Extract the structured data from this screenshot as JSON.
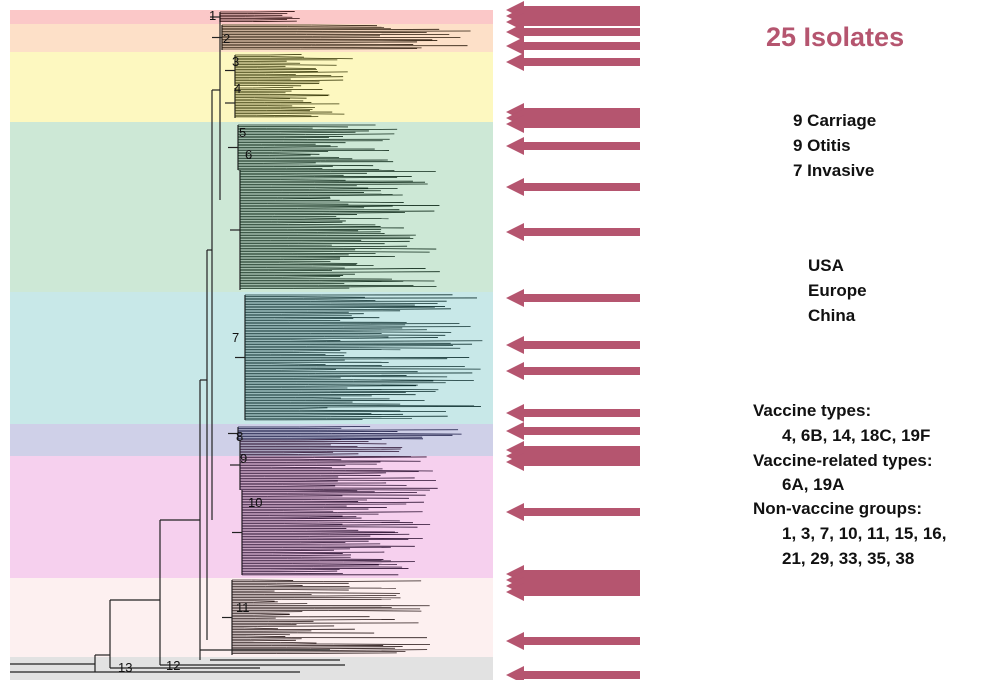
{
  "title": "25 Isolates",
  "sources": [
    "9 Carriage",
    "9 Otitis",
    "7 Invasive"
  ],
  "regions": [
    "USA",
    "Europe",
    "China"
  ],
  "types": {
    "vaccine_label": "Vaccine types:",
    "vaccine_values": "4, 6B, 14, 18C, 19F",
    "related_label": "Vaccine-related types:",
    "related_values": "6A, 19A",
    "nonvaccine_label": "Non-vaccine groups:",
    "nonvaccine_values_1": "1, 3, 7, 10, 11, 15, 16,",
    "nonvaccine_values_2": "21, 29, 33, 35, 38"
  },
  "clade_labels": [
    "1",
    "2",
    "3",
    "4",
    "5",
    "6",
    "7",
    "8",
    "9",
    "10",
    "11",
    "12",
    "13"
  ],
  "colors": {
    "arrow": "#b5556f",
    "title": "#b5556f",
    "band_1": "#fbc8c8",
    "band_2": "#fde0c8",
    "band_3_4": "#fdf8c0",
    "band_5_6": "#cde8d6",
    "band_7": "#c8e8e8",
    "band_8": "#cfd0e8",
    "band_9_10": "#f6d0ee",
    "band_11": "#fdf0f0",
    "band_12_13": "#e2e2e2"
  }
}
